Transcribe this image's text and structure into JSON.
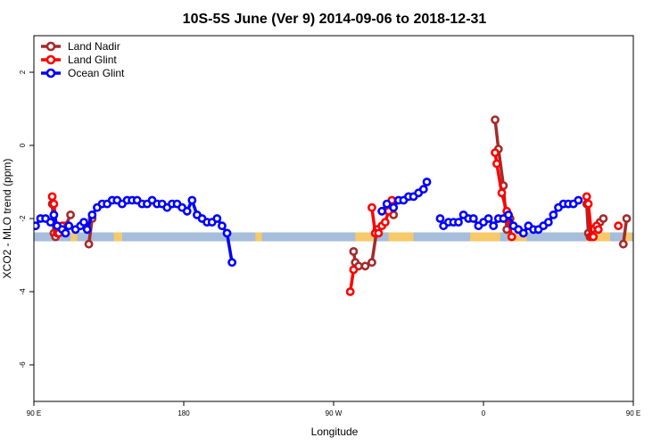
{
  "chart_data": {
    "type": "line",
    "title": "10S-5S June (Ver 9)   2014-09-06 to 2018-12-31",
    "xlabel": "Longitude",
    "ylabel": "XCO2 - MLO trend (ppm)",
    "xlim": [
      90,
      450
    ],
    "ylim": [
      -7,
      3
    ],
    "x_ticks": [
      {
        "value": 90,
        "label": "90 E"
      },
      {
        "value": 180,
        "label": "180"
      },
      {
        "value": 270,
        "label": "90 W"
      },
      {
        "value": 360,
        "label": "0"
      },
      {
        "value": 450,
        "label": "90 E"
      },
      {
        "value": 540,
        "label": "180"
      }
    ],
    "y_ticks": [
      {
        "value": -6,
        "label": "-6"
      },
      {
        "value": -4,
        "label": "-4"
      },
      {
        "value": -2,
        "label": "-2"
      },
      {
        "value": 0,
        "label": "0"
      },
      {
        "value": 2,
        "label": "2"
      }
    ],
    "legend_position": "top-left",
    "surface_band": {
      "y": -2.5,
      "ocean_color": "#a6bddb",
      "land_color": "#f6c96a",
      "land_segments": [
        [
          112,
          116
        ],
        [
          138,
          143
        ],
        [
          223,
          227
        ],
        [
          283,
          294
        ],
        [
          303,
          318
        ],
        [
          352,
          370
        ],
        [
          375,
          386
        ],
        [
          422,
          436
        ],
        [
          445,
          449
        ]
      ]
    },
    "series": [
      {
        "name": "Land Nadir",
        "color": "#a52a2a",
        "segments": [
          [
            [
              101,
              -1.6
            ],
            [
              102,
              -2.4
            ],
            [
              103,
              -2.5
            ],
            [
              104,
              -2.3
            ]
          ],
          [
            [
              109,
              -2.2
            ],
            [
              112,
              -1.9
            ]
          ],
          [
            [
              123,
              -2.7
            ],
            [
              125,
              -2.0
            ]
          ],
          [
            [
              282,
              -2.9
            ],
            [
              283,
              -3.2
            ],
            [
              285,
              -3.3
            ],
            [
              289,
              -3.3
            ],
            [
              293,
              -3.2
            ],
            [
              296,
              -2.3
            ]
          ],
          [
            [
              306,
              -1.9
            ]
          ],
          [
            [
              367,
              0.7
            ],
            [
              369,
              -0.1
            ],
            [
              372,
              -1.1
            ],
            [
              374,
              -2.3
            ],
            [
              376,
              -2.0
            ]
          ],
          [
            [
              422,
              -1.6
            ],
            [
              423,
              -2.4
            ],
            [
              424,
              -2.5
            ],
            [
              425,
              -2.3
            ]
          ],
          [
            [
              430,
              -2.1
            ],
            [
              432,
              -2.0
            ]
          ],
          [
            [
              444,
              -2.7
            ],
            [
              446,
              -2.0
            ]
          ]
        ]
      },
      {
        "name": "Land Glint",
        "color": "#ff0000",
        "segments": [
          [
            [
              101,
              -1.4
            ],
            [
              102,
              -1.6
            ],
            [
              104,
              -2.4
            ],
            [
              105,
              -2.4
            ]
          ],
          [
            [
              107,
              -2.2
            ],
            [
              108,
              -2.3
            ]
          ],
          [
            [
              121,
              -2.2
            ]
          ],
          [
            [
              280,
              -4.0
            ],
            [
              282,
              -3.4
            ]
          ],
          [
            [
              293,
              -1.7
            ],
            [
              295,
              -2.4
            ],
            [
              297,
              -2.4
            ],
            [
              299,
              -2.2
            ],
            [
              301,
              -2.1
            ],
            [
              303,
              -1.8
            ],
            [
              305,
              -1.5
            ]
          ],
          [
            [
              367,
              -0.2
            ],
            [
              368,
              -0.5
            ],
            [
              371,
              -1.3
            ],
            [
              374,
              -1.8
            ],
            [
              377,
              -2.5
            ]
          ],
          [
            [
              422,
              -1.4
            ],
            [
              423,
              -1.6
            ],
            [
              425,
              -2.5
            ],
            [
              426,
              -2.5
            ]
          ],
          [
            [
              428,
              -2.2
            ],
            [
              429,
              -2.3
            ]
          ],
          [
            [
              441,
              -2.2
            ]
          ]
        ]
      },
      {
        "name": "Ocean Glint",
        "color": "#0000ff",
        "segments": [
          [
            [
              91,
              -2.2
            ],
            [
              94,
              -2.0
            ],
            [
              97,
              -2.0
            ],
            [
              100,
              -2.1
            ],
            [
              102,
              -1.9
            ],
            [
              104,
              -2.2
            ],
            [
              107,
              -2.3
            ],
            [
              109,
              -2.4
            ],
            [
              111,
              -2.2
            ],
            [
              115,
              -2.3
            ],
            [
              118,
              -2.2
            ],
            [
              120,
              -2.1
            ],
            [
              122,
              -2.3
            ],
            [
              125,
              -1.9
            ],
            [
              128,
              -1.7
            ],
            [
              131,
              -1.6
            ],
            [
              134,
              -1.6
            ],
            [
              137,
              -1.5
            ],
            [
              140,
              -1.5
            ],
            [
              143,
              -1.6
            ],
            [
              146,
              -1.5
            ],
            [
              149,
              -1.5
            ],
            [
              152,
              -1.5
            ],
            [
              155,
              -1.6
            ],
            [
              158,
              -1.6
            ],
            [
              161,
              -1.5
            ],
            [
              164,
              -1.6
            ],
            [
              167,
              -1.6
            ],
            [
              170,
              -1.7
            ],
            [
              173,
              -1.6
            ],
            [
              176,
              -1.6
            ],
            [
              179,
              -1.7
            ],
            [
              182,
              -1.8
            ],
            [
              185,
              -1.5
            ],
            [
              188,
              -1.9
            ],
            [
              191,
              -2.0
            ],
            [
              194,
              -2.1
            ],
            [
              197,
              -2.1
            ],
            [
              200,
              -2.0
            ],
            [
              203,
              -2.2
            ],
            [
              206,
              -2.4
            ],
            [
              209,
              -3.2
            ]
          ],
          [
            [
              299,
              -1.8
            ],
            [
              302,
              -1.6
            ],
            [
              306,
              -1.7
            ],
            [
              309,
              -1.5
            ],
            [
              312,
              -1.5
            ],
            [
              315,
              -1.4
            ],
            [
              318,
              -1.4
            ],
            [
              321,
              -1.3
            ],
            [
              324,
              -1.2
            ],
            [
              326,
              -1.0
            ]
          ],
          [
            [
              334,
              -2.0
            ],
            [
              336,
              -2.2
            ],
            [
              339,
              -2.1
            ],
            [
              342,
              -2.1
            ],
            [
              345,
              -2.1
            ],
            [
              348,
              -1.9
            ],
            [
              351,
              -2.0
            ],
            [
              354,
              -2.0
            ],
            [
              357,
              -2.2
            ],
            [
              360,
              -2.1
            ],
            [
              363,
              -2.0
            ],
            [
              366,
              -2.2
            ],
            [
              369,
              -2.0
            ],
            [
              372,
              -2.0
            ],
            [
              375,
              -1.9
            ],
            [
              378,
              -2.2
            ],
            [
              381,
              -2.3
            ],
            [
              384,
              -2.4
            ],
            [
              387,
              -2.2
            ],
            [
              390,
              -2.3
            ],
            [
              393,
              -2.3
            ],
            [
              396,
              -2.2
            ],
            [
              399,
              -2.1
            ],
            [
              402,
              -1.9
            ],
            [
              405,
              -1.7
            ],
            [
              408,
              -1.6
            ],
            [
              411,
              -1.6
            ],
            [
              414,
              -1.6
            ],
            [
              417,
              -1.5
            ]
          ]
        ]
      }
    ]
  }
}
